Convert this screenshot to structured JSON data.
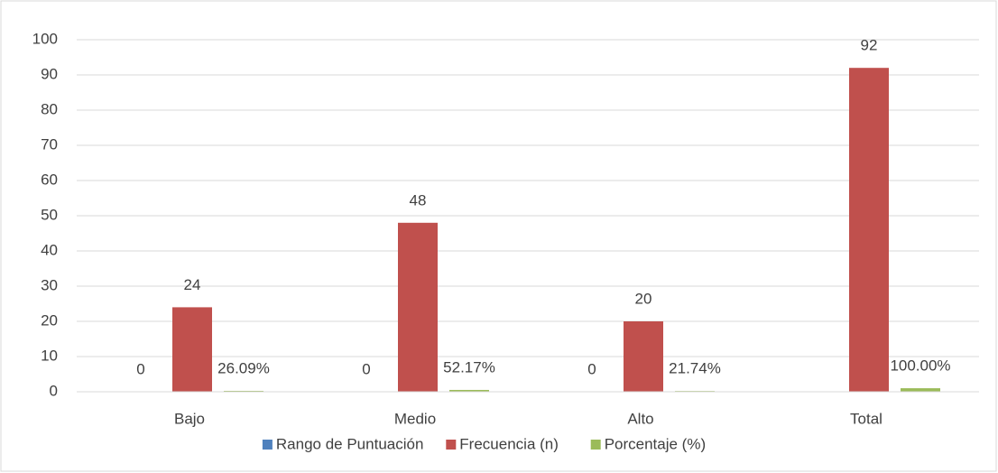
{
  "chart_data": {
    "type": "bar",
    "categories": [
      "Bajo",
      "Medio",
      "Alto",
      "Total"
    ],
    "series": [
      {
        "name": "Rango de Puntuación",
        "color": "#4f81bd",
        "values": [
          0,
          0,
          0,
          null
        ]
      },
      {
        "name": "Frecuencia (n)",
        "color": "#c0504d",
        "values": [
          24,
          48,
          20,
          92
        ]
      },
      {
        "name": "Porcentaje (%)",
        "color": "#9bbb59",
        "values": [
          0.2609,
          0.5217,
          0.2174,
          1.0
        ],
        "value_labels": [
          "26.09%",
          "52.17%",
          "21.74%",
          "100.00%"
        ]
      }
    ],
    "ylim": [
      0,
      100
    ],
    "yticks": [
      0,
      10,
      20,
      30,
      40,
      50,
      60,
      70,
      80,
      90,
      100
    ],
    "grid": true,
    "legend": "bottom"
  }
}
